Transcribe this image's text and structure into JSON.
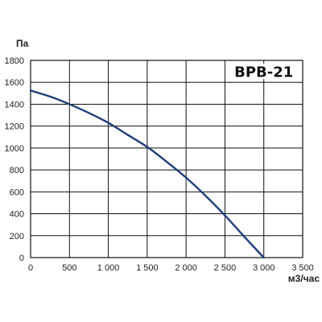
{
  "chart_data": {
    "type": "line",
    "title": "",
    "model_label": "ВРВ-21",
    "ylabel": "Па",
    "xlabel": "м3/час",
    "xlim": [
      0,
      3500
    ],
    "ylim": [
      0,
      1800
    ],
    "x_ticks": [
      0,
      500,
      1000,
      1500,
      2000,
      2500,
      3000,
      3500
    ],
    "x_tick_labels": [
      "0",
      "500",
      "1 000",
      "1 500",
      "2 000",
      "2 500",
      "3 000",
      "3 500"
    ],
    "y_ticks": [
      0,
      200,
      400,
      600,
      800,
      1000,
      1200,
      1400,
      1600,
      1800
    ],
    "y_tick_labels": [
      "0",
      "200",
      "400",
      "600",
      "800",
      "1000",
      "1200",
      "1400",
      "1600",
      "1800"
    ],
    "grid": true,
    "series": [
      {
        "color": "#1f3f7a",
        "x": [
          0,
          250,
          500,
          750,
          1000,
          1250,
          1500,
          1750,
          2000,
          2250,
          2500,
          2750,
          3000
        ],
        "y": [
          1525,
          1470,
          1400,
          1320,
          1230,
          1120,
          1010,
          875,
          730,
          565,
          385,
          190,
          0
        ]
      }
    ]
  }
}
